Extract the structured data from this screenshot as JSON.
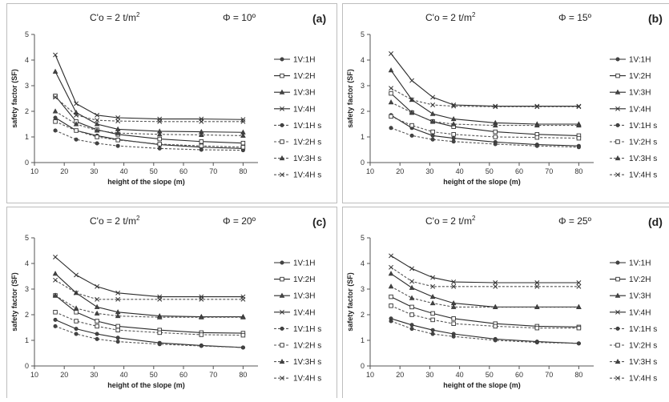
{
  "chart_data": [
    {
      "type": "line",
      "title_left": "C'o = 2 t/m",
      "title_left_sup": "2",
      "title_right": "Φ = 10º",
      "panel_label": "(a)",
      "xlabel": "height of the slope (m)",
      "ylabel": "safety factor (SF)",
      "xlim": [
        10,
        85
      ],
      "ylim": [
        0,
        5
      ],
      "xticks": [
        10,
        20,
        30,
        40,
        50,
        60,
        70,
        80
      ],
      "yticks": [
        0,
        1,
        2,
        3,
        4,
        5
      ],
      "x": [
        17,
        24,
        31,
        38,
        52,
        66,
        80
      ],
      "legend_position": "right",
      "grid": false,
      "series": [
        {
          "name": "1V:1H",
          "marker": "circle",
          "dashed": false,
          "values": [
            1.75,
            1.25,
            1.05,
            0.9,
            0.7,
            0.6,
            0.55
          ]
        },
        {
          "name": "1V:2H",
          "marker": "square",
          "dashed": false,
          "values": [
            2.6,
            1.6,
            1.28,
            1.1,
            0.92,
            0.82,
            0.76
          ]
        },
        {
          "name": "1V:3H",
          "marker": "triangle",
          "dashed": false,
          "values": [
            3.55,
            1.95,
            1.5,
            1.3,
            1.22,
            1.2,
            1.18
          ]
        },
        {
          "name": "1V:4H",
          "marker": "x",
          "dashed": false,
          "values": [
            4.2,
            2.3,
            1.85,
            1.75,
            1.7,
            1.7,
            1.68
          ]
        },
        {
          "name": "1V:1H s",
          "marker": "circle",
          "dashed": true,
          "values": [
            1.25,
            0.9,
            0.75,
            0.65,
            0.55,
            0.5,
            0.48
          ]
        },
        {
          "name": "1V:2H s",
          "marker": "square",
          "dashed": true,
          "values": [
            1.6,
            1.25,
            1.0,
            0.88,
            0.72,
            0.65,
            0.6
          ]
        },
        {
          "name": "1V:3H s",
          "marker": "triangle",
          "dashed": true,
          "values": [
            2.0,
            1.5,
            1.25,
            1.15,
            1.1,
            1.08,
            1.05
          ]
        },
        {
          "name": "1V:4H s",
          "marker": "x",
          "dashed": true,
          "values": [
            2.55,
            1.85,
            1.65,
            1.62,
            1.6,
            1.6,
            1.6
          ]
        }
      ]
    },
    {
      "type": "line",
      "title_left": "C'o = 2 t/m",
      "title_left_sup": "2",
      "title_right": "Φ = 15º",
      "panel_label": "(b)",
      "xlabel": "height of the slope (m)",
      "ylabel": "safety factor (SF)",
      "xlim": [
        10,
        85
      ],
      "ylim": [
        0,
        5
      ],
      "xticks": [
        10,
        20,
        30,
        40,
        50,
        60,
        70,
        80
      ],
      "yticks": [
        0,
        1,
        2,
        3,
        4,
        5
      ],
      "x": [
        17,
        24,
        31,
        38,
        52,
        66,
        80
      ],
      "legend_position": "right",
      "grid": false,
      "series": [
        {
          "name": "1V:1H",
          "marker": "circle",
          "dashed": false,
          "values": [
            1.85,
            1.35,
            1.05,
            0.95,
            0.8,
            0.7,
            0.65
          ]
        },
        {
          "name": "1V:2H",
          "marker": "square",
          "dashed": false,
          "values": [
            2.7,
            1.95,
            1.6,
            1.4,
            1.2,
            1.1,
            1.05
          ]
        },
        {
          "name": "1V:3H",
          "marker": "triangle",
          "dashed": false,
          "values": [
            3.6,
            2.45,
            1.9,
            1.7,
            1.55,
            1.5,
            1.5
          ]
        },
        {
          "name": "1V:4H",
          "marker": "x",
          "dashed": false,
          "values": [
            4.25,
            3.2,
            2.55,
            2.25,
            2.2,
            2.2,
            2.2
          ]
        },
        {
          "name": "1V:1H s",
          "marker": "circle",
          "dashed": true,
          "values": [
            1.35,
            1.05,
            0.9,
            0.82,
            0.72,
            0.65,
            0.6
          ]
        },
        {
          "name": "1V:2H s",
          "marker": "square",
          "dashed": true,
          "values": [
            1.8,
            1.45,
            1.2,
            1.1,
            1.0,
            0.98,
            0.95
          ]
        },
        {
          "name": "1V:3H s",
          "marker": "triangle",
          "dashed": true,
          "values": [
            2.35,
            1.95,
            1.6,
            1.5,
            1.45,
            1.45,
            1.45
          ]
        },
        {
          "name": "1V:4H s",
          "marker": "x",
          "dashed": true,
          "values": [
            2.9,
            2.45,
            2.25,
            2.2,
            2.18,
            2.18,
            2.18
          ]
        }
      ]
    },
    {
      "type": "line",
      "title_left": "C'o = 2 t/m",
      "title_left_sup": "2",
      "title_right": "Φ = 20º",
      "panel_label": "(c)",
      "xlabel": "height of the slope (m)",
      "ylabel": "safety factor (SF)",
      "xlim": [
        10,
        85
      ],
      "ylim": [
        0,
        5
      ],
      "xticks": [
        10,
        20,
        30,
        40,
        50,
        60,
        70,
        80
      ],
      "yticks": [
        0,
        1,
        2,
        3,
        4,
        5
      ],
      "x": [
        17,
        24,
        31,
        38,
        52,
        66,
        80
      ],
      "legend_position": "right",
      "grid": false,
      "series": [
        {
          "name": "1V:1H",
          "marker": "circle",
          "dashed": false,
          "values": [
            1.8,
            1.45,
            1.25,
            1.1,
            0.9,
            0.8,
            0.72
          ]
        },
        {
          "name": "1V:2H",
          "marker": "square",
          "dashed": false,
          "values": [
            2.75,
            2.1,
            1.75,
            1.55,
            1.4,
            1.3,
            1.28
          ]
        },
        {
          "name": "1V:3H",
          "marker": "triangle",
          "dashed": false,
          "values": [
            3.6,
            2.85,
            2.3,
            2.1,
            1.95,
            1.92,
            1.92
          ]
        },
        {
          "name": "1V:4H",
          "marker": "x",
          "dashed": false,
          "values": [
            4.25,
            3.55,
            3.1,
            2.85,
            2.7,
            2.7,
            2.7
          ]
        },
        {
          "name": "1V:1H s",
          "marker": "circle",
          "dashed": true,
          "values": [
            1.55,
            1.25,
            1.05,
            0.95,
            0.85,
            0.78,
            0.72
          ]
        },
        {
          "name": "1V:2H s",
          "marker": "square",
          "dashed": true,
          "values": [
            2.1,
            1.75,
            1.55,
            1.4,
            1.3,
            1.22,
            1.2
          ]
        },
        {
          "name": "1V:3H s",
          "marker": "triangle",
          "dashed": true,
          "values": [
            2.75,
            2.25,
            2.05,
            1.95,
            1.9,
            1.9,
            1.9
          ]
        },
        {
          "name": "1V:4H s",
          "marker": "x",
          "dashed": true,
          "values": [
            3.35,
            2.85,
            2.6,
            2.6,
            2.6,
            2.6,
            2.6
          ]
        }
      ]
    },
    {
      "type": "line",
      "title_left": "C'o = 2 t/m",
      "title_left_sup": "2",
      "title_right": "Φ = 25º",
      "panel_label": "(d)",
      "xlabel": "height of the slope (m)",
      "ylabel": "safety factor (SF)",
      "xlim": [
        10,
        85
      ],
      "ylim": [
        0,
        5
      ],
      "xticks": [
        10,
        20,
        30,
        40,
        50,
        60,
        70,
        80
      ],
      "yticks": [
        0,
        1,
        2,
        3,
        4,
        5
      ],
      "x": [
        17,
        24,
        31,
        38,
        52,
        66,
        80
      ],
      "legend_position": "right",
      "grid": false,
      "series": [
        {
          "name": "1V:1H",
          "marker": "circle",
          "dashed": false,
          "values": [
            1.85,
            1.6,
            1.4,
            1.25,
            1.05,
            0.95,
            0.88
          ]
        },
        {
          "name": "1V:2H",
          "marker": "square",
          "dashed": false,
          "values": [
            2.7,
            2.3,
            2.05,
            1.85,
            1.65,
            1.55,
            1.52
          ]
        },
        {
          "name": "1V:3H",
          "marker": "triangle",
          "dashed": false,
          "values": [
            3.6,
            3.05,
            2.7,
            2.45,
            2.3,
            2.3,
            2.3
          ]
        },
        {
          "name": "1V:4H",
          "marker": "x",
          "dashed": false,
          "values": [
            4.3,
            3.8,
            3.45,
            3.28,
            3.25,
            3.25,
            3.25
          ]
        },
        {
          "name": "1V:1H s",
          "marker": "circle",
          "dashed": true,
          "values": [
            1.75,
            1.45,
            1.25,
            1.15,
            1.0,
            0.92,
            0.88
          ]
        },
        {
          "name": "1V:2H s",
          "marker": "square",
          "dashed": true,
          "values": [
            2.35,
            2.0,
            1.8,
            1.65,
            1.55,
            1.48,
            1.48
          ]
        },
        {
          "name": "1V:3H s",
          "marker": "triangle",
          "dashed": true,
          "values": [
            3.1,
            2.65,
            2.45,
            2.3,
            2.3,
            2.3,
            2.3
          ]
        },
        {
          "name": "1V:4H s",
          "marker": "x",
          "dashed": true,
          "values": [
            3.85,
            3.3,
            3.1,
            3.1,
            3.1,
            3.1,
            3.1
          ]
        }
      ]
    }
  ]
}
